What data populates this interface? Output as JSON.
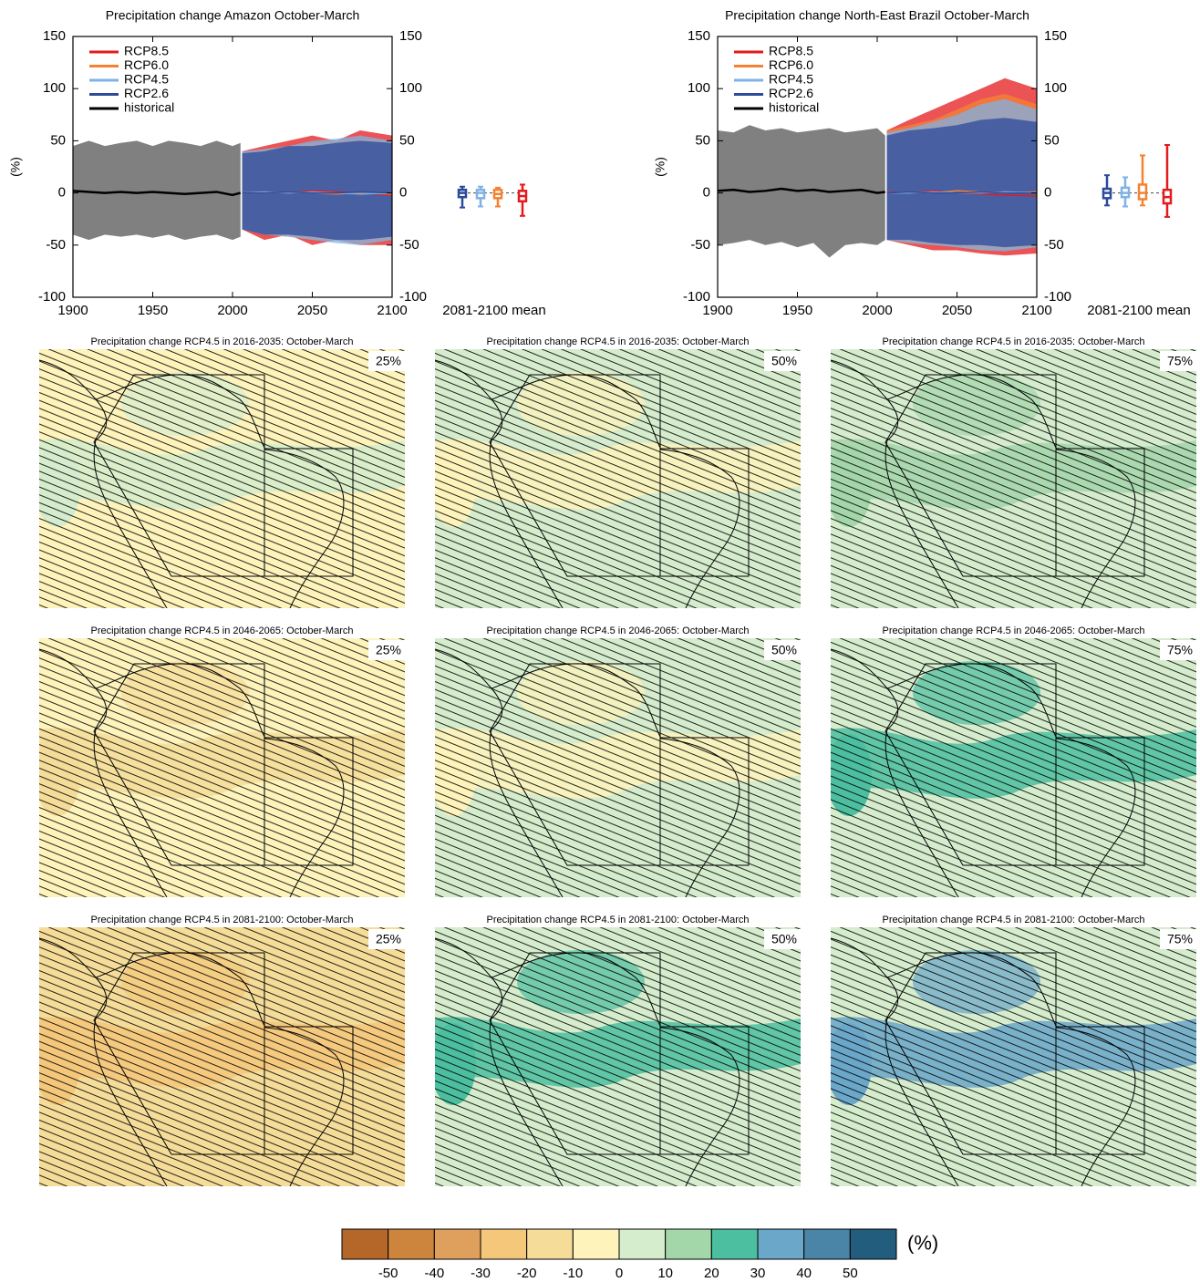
{
  "chart_data": [
    {
      "type": "line",
      "title": "Precipitation change Amazon October-March",
      "ylabel": "(%)",
      "box_label": "2081-2100 mean",
      "xlim": [
        1900,
        2100
      ],
      "xticks": [
        1900,
        1950,
        2000,
        2050,
        2100
      ],
      "ylim": [
        -100,
        150
      ],
      "yticks": [
        -100,
        -50,
        0,
        50,
        100,
        150
      ],
      "series": [
        {
          "name": "RCP8.5",
          "color": "#e41a1c",
          "band_color": "#e41a1c",
          "x": [
            2006,
            2020,
            2035,
            2050,
            2065,
            2080,
            2100
          ],
          "values": [
            0,
            1,
            0,
            2,
            1,
            0,
            -2
          ],
          "lower": [
            -35,
            -45,
            -40,
            -50,
            -45,
            -50,
            -50
          ],
          "upper": [
            40,
            45,
            50,
            55,
            50,
            60,
            55
          ],
          "box": {
            "min": -22,
            "q1": -8,
            "median": -3,
            "q3": 2,
            "max": 8
          }
        },
        {
          "name": "RCP6.0",
          "color": "#f58231",
          "band_color": "#f58231",
          "x": [
            2006,
            2020,
            2035,
            2050,
            2065,
            2080,
            2100
          ],
          "values": [
            0,
            0,
            1,
            0,
            -1,
            0,
            -1
          ],
          "lower": [
            -35,
            -40,
            -42,
            -45,
            -45,
            -48,
            -45
          ],
          "upper": [
            38,
            42,
            45,
            48,
            50,
            52,
            50
          ],
          "box": {
            "min": -13,
            "q1": -5,
            "median": -1,
            "q3": 3,
            "max": 5
          }
        },
        {
          "name": "RCP4.5",
          "color": "#7fb2e5",
          "band_color": "#7fb2e5",
          "x": [
            2006,
            2020,
            2035,
            2050,
            2065,
            2080,
            2100
          ],
          "values": [
            0,
            1,
            0,
            1,
            0,
            -1,
            0
          ],
          "lower": [
            -35,
            -40,
            -42,
            -45,
            -48,
            -50,
            -45
          ],
          "upper": [
            40,
            42,
            45,
            50,
            52,
            55,
            50
          ],
          "box": {
            "min": -13,
            "q1": -5,
            "median": 0,
            "q3": 3,
            "max": 6
          }
        },
        {
          "name": "RCP2.6",
          "color": "#2c4a9a",
          "band_color": "#2c4a9a",
          "x": [
            2006,
            2020,
            2035,
            2050,
            2065,
            2080,
            2100
          ],
          "values": [
            0,
            0,
            1,
            0,
            0,
            1,
            0
          ],
          "lower": [
            -35,
            -40,
            -40,
            -42,
            -45,
            -45,
            -42
          ],
          "upper": [
            38,
            40,
            45,
            45,
            48,
            50,
            48
          ],
          "box": {
            "min": -14,
            "q1": -4,
            "median": 0,
            "q3": 3,
            "max": 6
          }
        },
        {
          "name": "historical",
          "color": "#000000",
          "band_color": "#808080",
          "x": [
            1900,
            1910,
            1920,
            1930,
            1940,
            1950,
            1960,
            1970,
            1980,
            1990,
            2000,
            2005
          ],
          "values": [
            2,
            1,
            0,
            1,
            0,
            1,
            0,
            -1,
            0,
            1,
            -2,
            0
          ],
          "lower": [
            -40,
            -45,
            -40,
            -42,
            -40,
            -43,
            -40,
            -45,
            -42,
            -40,
            -45,
            -42
          ],
          "upper": [
            45,
            50,
            45,
            48,
            50,
            45,
            50,
            48,
            45,
            50,
            45,
            48
          ]
        }
      ]
    },
    {
      "type": "line",
      "title": "Precipitation change North-East Brazil October-March",
      "ylabel": "(%)",
      "box_label": "2081-2100 mean",
      "xlim": [
        1900,
        2100
      ],
      "xticks": [
        1900,
        1950,
        2000,
        2050,
        2100
      ],
      "ylim": [
        -100,
        150
      ],
      "yticks": [
        -100,
        -50,
        0,
        50,
        100,
        150
      ],
      "series": [
        {
          "name": "RCP8.5",
          "color": "#e41a1c",
          "band_color": "#e41a1c",
          "x": [
            2006,
            2020,
            2035,
            2050,
            2065,
            2080,
            2100
          ],
          "values": [
            1,
            0,
            2,
            0,
            -1,
            -2,
            -3
          ],
          "lower": [
            -45,
            -50,
            -55,
            -55,
            -58,
            -60,
            -58
          ],
          "upper": [
            60,
            70,
            80,
            90,
            100,
            110,
            100
          ],
          "box": {
            "min": -23,
            "q1": -10,
            "median": -4,
            "q3": 3,
            "max": 46
          }
        },
        {
          "name": "RCP6.0",
          "color": "#f58231",
          "band_color": "#f58231",
          "x": [
            2006,
            2020,
            2035,
            2050,
            2065,
            2080,
            2100
          ],
          "values": [
            0,
            1,
            0,
            2,
            1,
            0,
            1
          ],
          "lower": [
            -45,
            -48,
            -50,
            -52,
            -55,
            -55,
            -52
          ],
          "upper": [
            60,
            65,
            70,
            80,
            90,
            95,
            85
          ],
          "box": {
            "min": -12,
            "q1": -6,
            "median": 0,
            "q3": 8,
            "max": 36
          }
        },
        {
          "name": "RCP4.5",
          "color": "#7fb2e5",
          "band_color": "#7fb2e5",
          "x": [
            2006,
            2020,
            2035,
            2050,
            2065,
            2080,
            2100
          ],
          "values": [
            0,
            0,
            1,
            0,
            0,
            1,
            0
          ],
          "lower": [
            -45,
            -48,
            -50,
            -52,
            -55,
            -56,
            -52
          ],
          "upper": [
            58,
            62,
            68,
            75,
            85,
            90,
            80
          ],
          "box": {
            "min": -13,
            "q1": -4,
            "median": 0,
            "q3": 5,
            "max": 15
          }
        },
        {
          "name": "RCP2.6",
          "color": "#2c4a9a",
          "band_color": "#2c4a9a",
          "x": [
            2006,
            2020,
            2035,
            2050,
            2065,
            2080,
            2100
          ],
          "values": [
            0,
            1,
            0,
            0,
            1,
            0,
            0
          ],
          "lower": [
            -45,
            -45,
            -48,
            -50,
            -50,
            -52,
            -50
          ],
          "upper": [
            55,
            60,
            62,
            65,
            70,
            72,
            68
          ],
          "box": {
            "min": -12,
            "q1": -5,
            "median": 0,
            "q3": 4,
            "max": 17
          }
        },
        {
          "name": "historical",
          "color": "#000000",
          "band_color": "#808080",
          "x": [
            1900,
            1910,
            1920,
            1930,
            1940,
            1950,
            1960,
            1970,
            1980,
            1990,
            2000,
            2005
          ],
          "values": [
            2,
            3,
            1,
            2,
            4,
            2,
            3,
            1,
            2,
            3,
            0,
            1
          ],
          "lower": [
            -50,
            -48,
            -45,
            -50,
            -47,
            -52,
            -48,
            -62,
            -50,
            -48,
            -50,
            -45
          ],
          "upper": [
            60,
            58,
            65,
            60,
            62,
            58,
            60,
            62,
            58,
            60,
            62,
            55
          ]
        }
      ]
    },
    {
      "type": "map",
      "title": "Precipitation change RCP4.5 in 2016-2035: October-March",
      "label": "25%",
      "color": "#fdf3bb",
      "accent": "#d5eccd"
    },
    {
      "type": "map",
      "title": "Precipitation change RCP4.5 in 2016-2035: October-March",
      "label": "50%",
      "color": "#d5eccd",
      "accent": "#fdf3bb"
    },
    {
      "type": "map",
      "title": "Precipitation change RCP4.5 in 2016-2035: October-March",
      "label": "75%",
      "color": "#d5eccd",
      "accent": "#a3d6a9"
    },
    {
      "type": "map",
      "title": "Precipitation change RCP4.5 in 2046-2065: October-March",
      "label": "25%",
      "color": "#fdf3bb",
      "accent": "#f5dc98"
    },
    {
      "type": "map",
      "title": "Precipitation change RCP4.5 in 2046-2065: October-March",
      "label": "50%",
      "color": "#d5eccd",
      "accent": "#fdf3bb"
    },
    {
      "type": "map",
      "title": "Precipitation change RCP4.5 in 2046-2065: October-March",
      "label": "75%",
      "color": "#d5eccd",
      "accent": "#4bbf9f"
    },
    {
      "type": "map",
      "title": "Precipitation change RCP4.5 in 2081-2100: October-March",
      "label": "25%",
      "color": "#f5dc98",
      "accent": "#f4c77a"
    },
    {
      "type": "map",
      "title": "Precipitation change RCP4.5 in 2081-2100: October-March",
      "label": "50%",
      "color": "#d5eccd",
      "accent": "#4bbf9f"
    },
    {
      "type": "map",
      "title": "Precipitation change RCP4.5 in 2081-2100: October-March",
      "label": "75%",
      "color": "#d5eccd",
      "accent": "#6aa7c9"
    },
    {
      "type": "colorbar",
      "label": "(%)",
      "xlim": [
        -60,
        60
      ],
      "xticks": [
        -50,
        -40,
        -30,
        -20,
        -10,
        0,
        10,
        20,
        30,
        40,
        50
      ],
      "colors": [
        "#b5672a",
        "#cd843c",
        "#e0a05d",
        "#f4c77a",
        "#f5dc98",
        "#fdf3bb",
        "#d5eccd",
        "#a3d6a9",
        "#4bbf9f",
        "#6aa7c9",
        "#4a84a6",
        "#235d7e"
      ]
    }
  ]
}
